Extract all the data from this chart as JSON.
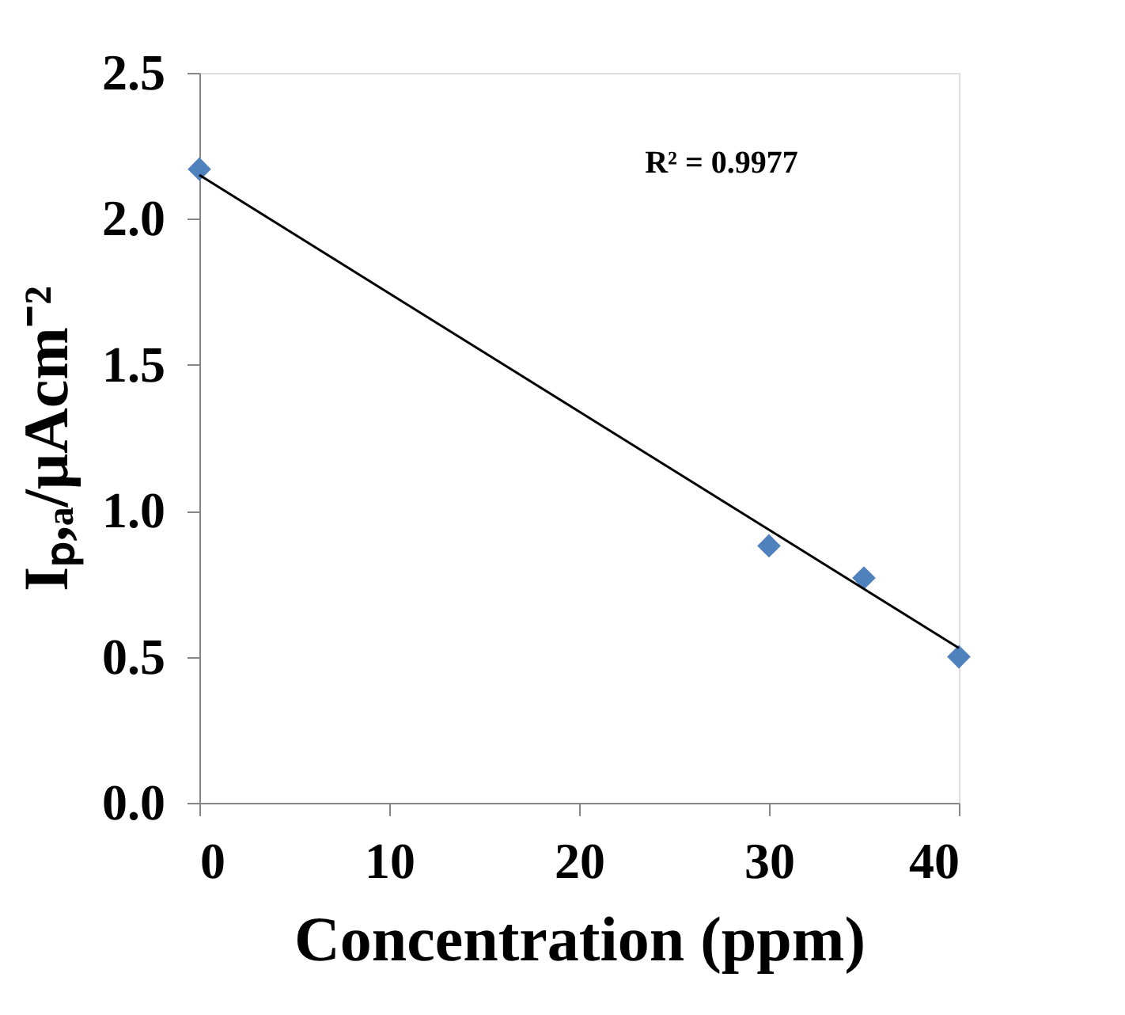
{
  "chart_data": {
    "type": "scatter",
    "xlabel": "Concentration (ppm)",
    "ylabel": "Iₚ,ₐ/μAcm⁻²",
    "annotations": [
      "R² = 0.9977"
    ],
    "series": [
      {
        "color": "#4f81bd",
        "marker": "diamond",
        "x": [
          0,
          30,
          35,
          40
        ],
        "values": [
          2.17,
          0.88,
          0.77,
          0.5
        ]
      },
      {
        "type": "line",
        "color": "#000000",
        "marker": "none",
        "x": [
          0,
          40
        ],
        "values": [
          2.15,
          0.53
        ]
      }
    ],
    "xlim": [
      0,
      40
    ],
    "xticks": [
      0,
      10,
      20,
      30,
      40
    ],
    "ylim": [
      0,
      2.5
    ],
    "yticks": [
      {
        "value": 0,
        "label": "0.0"
      },
      {
        "value": 0.5,
        "label": "0.5"
      },
      {
        "value": 1,
        "label": "1.0"
      },
      {
        "value": 1.5,
        "label": "1.5"
      },
      {
        "value": 2,
        "label": "2.0"
      },
      {
        "value": 2.5,
        "label": "2.5"
      }
    ],
    "grid": false
  }
}
